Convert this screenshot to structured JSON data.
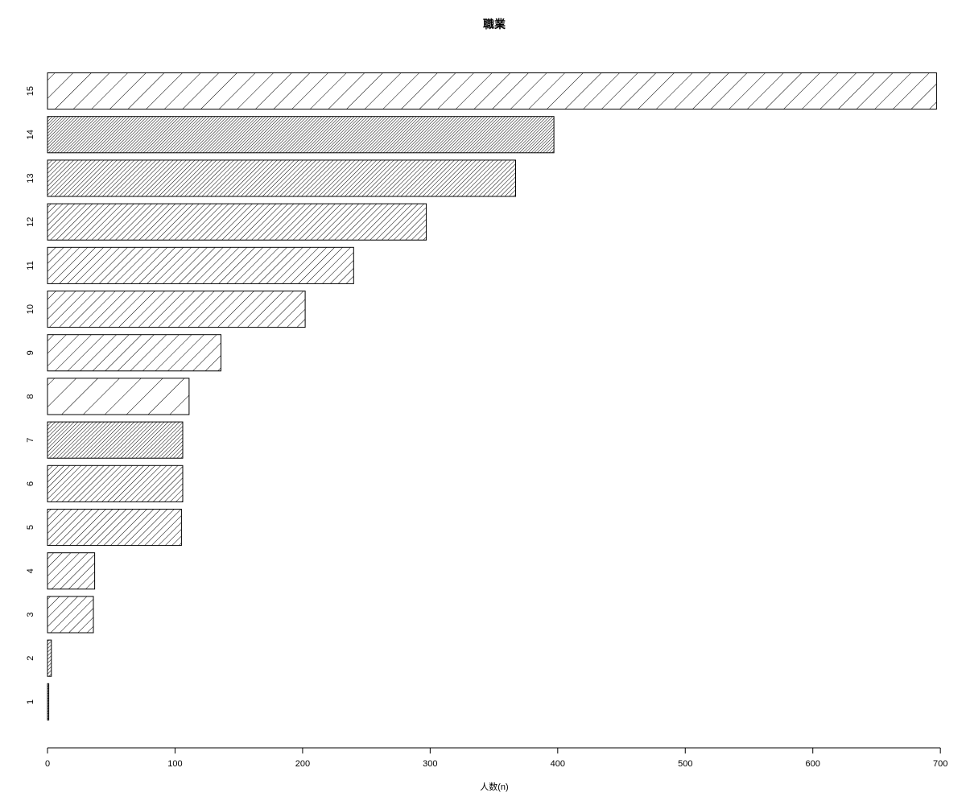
{
  "chart_data": {
    "type": "bar",
    "orientation": "horizontal",
    "title": "職業",
    "xlabel": "人数(n)",
    "ylabel": "",
    "categories": [
      "1",
      "2",
      "3",
      "4",
      "5",
      "6",
      "7",
      "8",
      "9",
      "10",
      "11",
      "12",
      "13",
      "14",
      "15"
    ],
    "values": [
      1,
      3,
      36,
      37,
      105,
      106,
      106,
      111,
      136,
      202,
      240,
      297,
      367,
      397,
      697
    ],
    "xlim": [
      0,
      700
    ],
    "xticks": [
      0,
      100,
      200,
      300,
      400,
      500,
      600,
      700
    ],
    "xtick_labels": [
      "0",
      "100",
      "200",
      "300",
      "400",
      "500",
      "600",
      "700"
    ],
    "grid": false,
    "legend": "none",
    "bar_fill": "hatched",
    "colors": {
      "stroke": "#000000",
      "background": "#ffffff"
    }
  }
}
